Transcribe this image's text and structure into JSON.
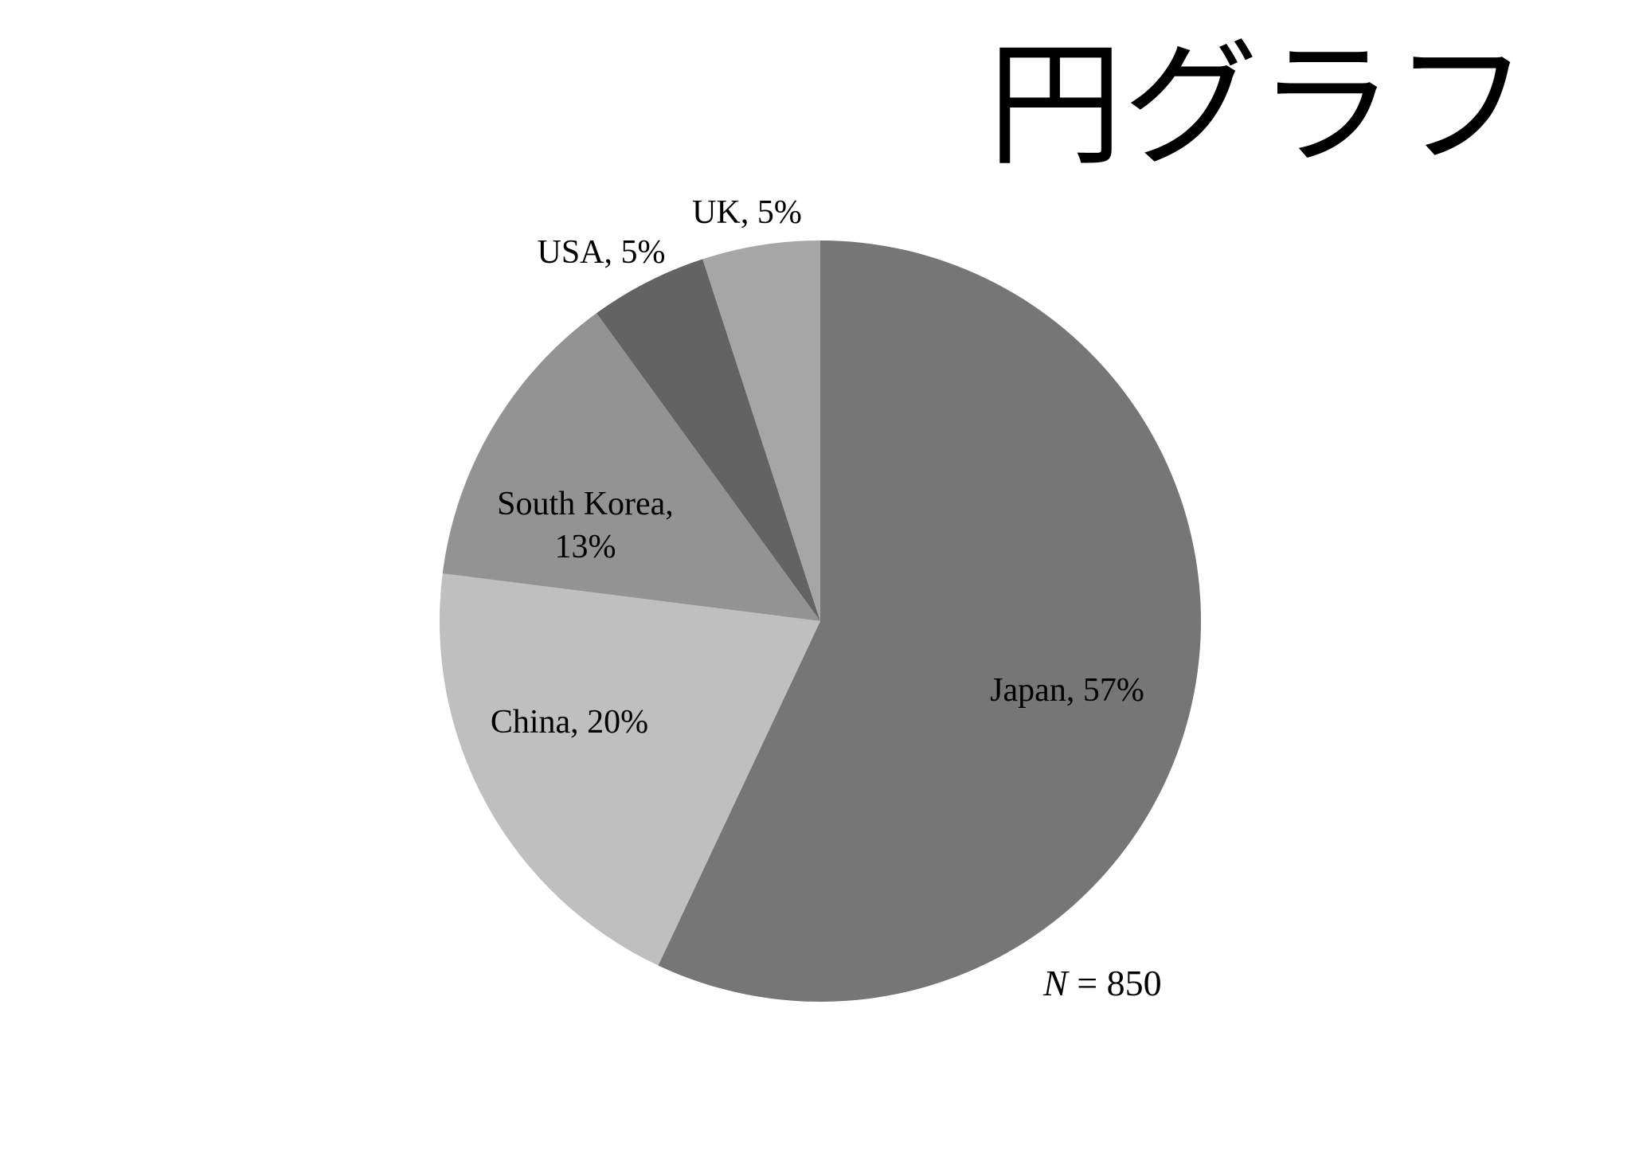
{
  "chart_data": {
    "type": "pie",
    "title": "円グラフ",
    "start_angle_deg": 0,
    "direction": "clockwise",
    "slices": [
      {
        "label": "Japan",
        "value": 57,
        "display": "Japan, 57%",
        "color": "#767676"
      },
      {
        "label": "China",
        "value": 20,
        "display": "China, 20%",
        "color": "#bfbfbf"
      },
      {
        "label": "South Korea",
        "value": 13,
        "display": [
          "South Korea,",
          "13%"
        ],
        "color": "#939393"
      },
      {
        "label": "USA",
        "value": 5,
        "display": "USA, 5%",
        "color": "#636363"
      },
      {
        "label": "UK",
        "value": 5,
        "display": "UK, 5%",
        "color": "#a6a6a6"
      }
    ],
    "sample_size": {
      "symbol": "N",
      "text": " = 850"
    }
  }
}
